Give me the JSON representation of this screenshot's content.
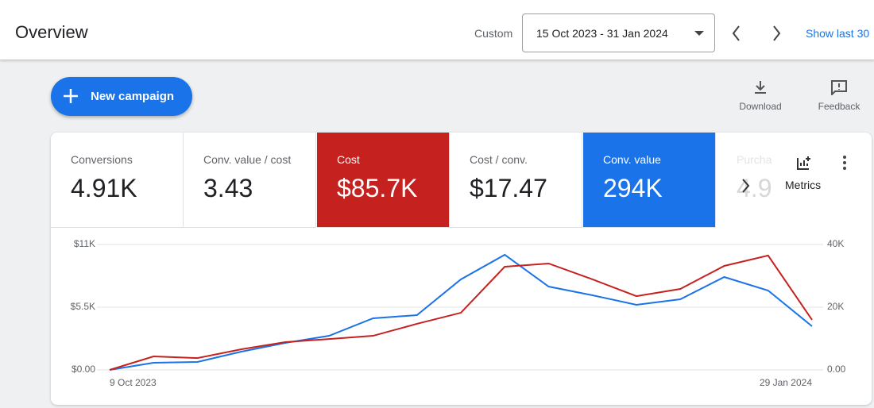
{
  "header": {
    "title": "Overview",
    "range_label": "Custom",
    "date_range": "15 Oct 2023 - 31 Jan 2024",
    "show_last": "Show last 30"
  },
  "actions": {
    "new_campaign": "New campaign",
    "download": "Download",
    "feedback": "Feedback",
    "metrics": "Metrics"
  },
  "metrics": [
    {
      "label": "Conversions",
      "value": "4.91K"
    },
    {
      "label": "Conv. value / cost",
      "value": "3.43"
    },
    {
      "label": "Cost / conv.",
      "value": "$17.47"
    },
    {
      "label": "Purcha",
      "value": "4.9"
    }
  ],
  "chart_data": {
    "type": "line",
    "categories": [
      "9 Oct 2023",
      null,
      null,
      null,
      null,
      null,
      null,
      null,
      null,
      null,
      null,
      null,
      null,
      null,
      null,
      null,
      "29 Jan 2024"
    ],
    "series": [
      {
        "name": "Cost",
        "total": "$85.7K",
        "color": "#c5221f",
        "axis": "y",
        "values": [
          0,
          1180,
          1040,
          1810,
          2440,
          2710,
          2990,
          4040,
          5010,
          9050,
          9330,
          7940,
          6470,
          7100,
          9120,
          10030,
          4390
        ]
      },
      {
        "name": "Conv. value",
        "total": "294K",
        "color": "#1a73e8",
        "axis": "y2",
        "values": [
          0,
          2280,
          2530,
          5820,
          8600,
          10880,
          16460,
          17470,
          28860,
          36710,
          26580,
          23800,
          20760,
          22530,
          29620,
          25320,
          13920
        ]
      }
    ],
    "ylim": [
      0,
      11000
    ],
    "yticks": [
      {
        "value": 0,
        "label": "$0.00"
      },
      {
        "value": 5500,
        "label": "$5.5K"
      },
      {
        "value": 11000,
        "label": "$11K"
      }
    ],
    "y2lim": [
      0,
      40000
    ],
    "y2ticks": [
      {
        "value": 0,
        "label": "0.00"
      },
      {
        "value": 20000,
        "label": "20K"
      },
      {
        "value": 40000,
        "label": "40K"
      }
    ],
    "grid": true
  }
}
